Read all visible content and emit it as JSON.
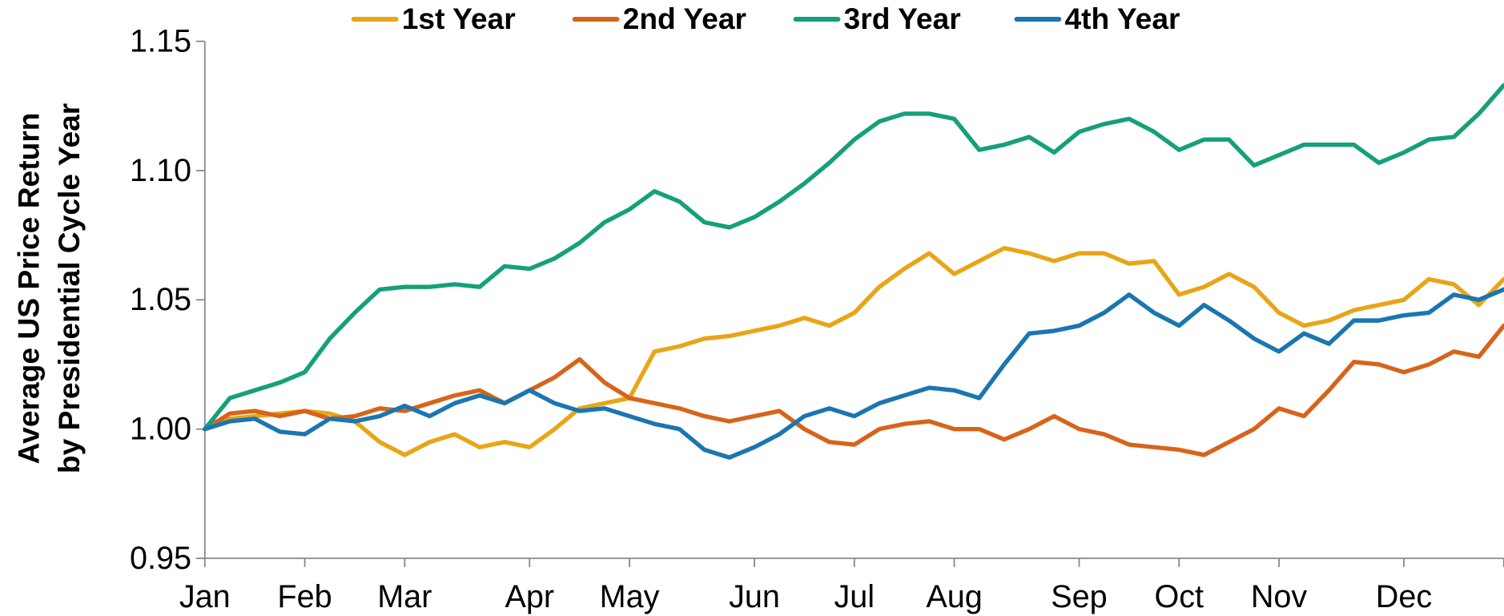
{
  "chart_data": {
    "type": "line",
    "y_label": [
      "Average US Price Return",
      "by Presidential Cycle Year"
    ],
    "categories": [
      "Jan",
      null,
      null,
      null,
      "Feb",
      null,
      null,
      null,
      "Mar",
      null,
      null,
      null,
      null,
      "Apr",
      null,
      null,
      null,
      "May",
      null,
      null,
      null,
      null,
      "Jun",
      null,
      null,
      null,
      "Jul",
      null,
      null,
      null,
      "Aug",
      null,
      null,
      null,
      null,
      "Sep",
      null,
      null,
      null,
      "Oct",
      null,
      null,
      null,
      "Nov",
      null,
      null,
      null,
      null,
      "Dec",
      null,
      null,
      null,
      null
    ],
    "ylim": [
      0.95,
      1.15
    ],
    "yticks": [
      0.95,
      {
        "value": 1.0,
        "label": "1.00"
      },
      1.05,
      {
        "value": 1.1,
        "label": "1.10"
      },
      1.15
    ],
    "grid": false,
    "legend": "top",
    "series": [
      {
        "name": "1st Year",
        "color": "#e8a517",
        "values": [
          1.0,
          1.004,
          1.005,
          1.006,
          1.007,
          1.006,
          1.003,
          0.995,
          0.99,
          0.995,
          0.998,
          0.993,
          0.995,
          0.993,
          1.0,
          1.008,
          1.01,
          1.012,
          1.03,
          1.032,
          1.035,
          1.036,
          1.038,
          1.04,
          1.043,
          1.04,
          1.045,
          1.055,
          1.062,
          1.068,
          1.06,
          1.065,
          1.07,
          1.068,
          1.065,
          1.068,
          1.068,
          1.064,
          1.065,
          1.052,
          1.055,
          1.06,
          1.055,
          1.045,
          1.04,
          1.042,
          1.046,
          1.048,
          1.05,
          1.058,
          1.056,
          1.048,
          1.058
        ]
      },
      {
        "name": "2nd Year",
        "color": "#d7641a",
        "values": [
          1.0,
          1.006,
          1.007,
          1.005,
          1.007,
          1.004,
          1.005,
          1.008,
          1.007,
          1.01,
          1.013,
          1.015,
          1.01,
          1.015,
          1.02,
          1.027,
          1.018,
          1.012,
          1.01,
          1.008,
          1.005,
          1.003,
          1.005,
          1.007,
          1.0,
          0.995,
          0.994,
          1.0,
          1.002,
          1.003,
          1.0,
          1.0,
          0.996,
          1.0,
          1.005,
          1.0,
          0.998,
          0.994,
          0.993,
          0.992,
          0.99,
          0.995,
          1.0,
          1.008,
          1.005,
          1.015,
          1.026,
          1.025,
          1.022,
          1.025,
          1.03,
          1.028,
          1.04
        ]
      },
      {
        "name": "3rd Year",
        "color": "#16a07a",
        "values": [
          1.0,
          1.012,
          1.015,
          1.018,
          1.022,
          1.035,
          1.045,
          1.054,
          1.055,
          1.055,
          1.056,
          1.055,
          1.063,
          1.062,
          1.066,
          1.072,
          1.08,
          1.085,
          1.092,
          1.088,
          1.08,
          1.078,
          1.082,
          1.088,
          1.095,
          1.103,
          1.112,
          1.119,
          1.122,
          1.122,
          1.12,
          1.108,
          1.11,
          1.113,
          1.107,
          1.115,
          1.118,
          1.12,
          1.115,
          1.108,
          1.112,
          1.112,
          1.102,
          1.106,
          1.11,
          1.11,
          1.11,
          1.103,
          1.107,
          1.112,
          1.113,
          1.122,
          1.133
        ]
      },
      {
        "name": "4th Year",
        "color": "#1a76b1",
        "values": [
          1.0,
          1.003,
          1.004,
          0.999,
          0.998,
          1.004,
          1.003,
          1.005,
          1.009,
          1.005,
          1.01,
          1.013,
          1.01,
          1.015,
          1.01,
          1.007,
          1.008,
          1.005,
          1.002,
          1.0,
          0.992,
          0.989,
          0.993,
          0.998,
          1.005,
          1.008,
          1.005,
          1.01,
          1.013,
          1.016,
          1.015,
          1.012,
          1.025,
          1.037,
          1.038,
          1.04,
          1.045,
          1.052,
          1.045,
          1.04,
          1.048,
          1.042,
          1.035,
          1.03,
          1.037,
          1.033,
          1.042,
          1.042,
          1.044,
          1.045,
          1.052,
          1.05,
          1.054
        ]
      }
    ]
  }
}
